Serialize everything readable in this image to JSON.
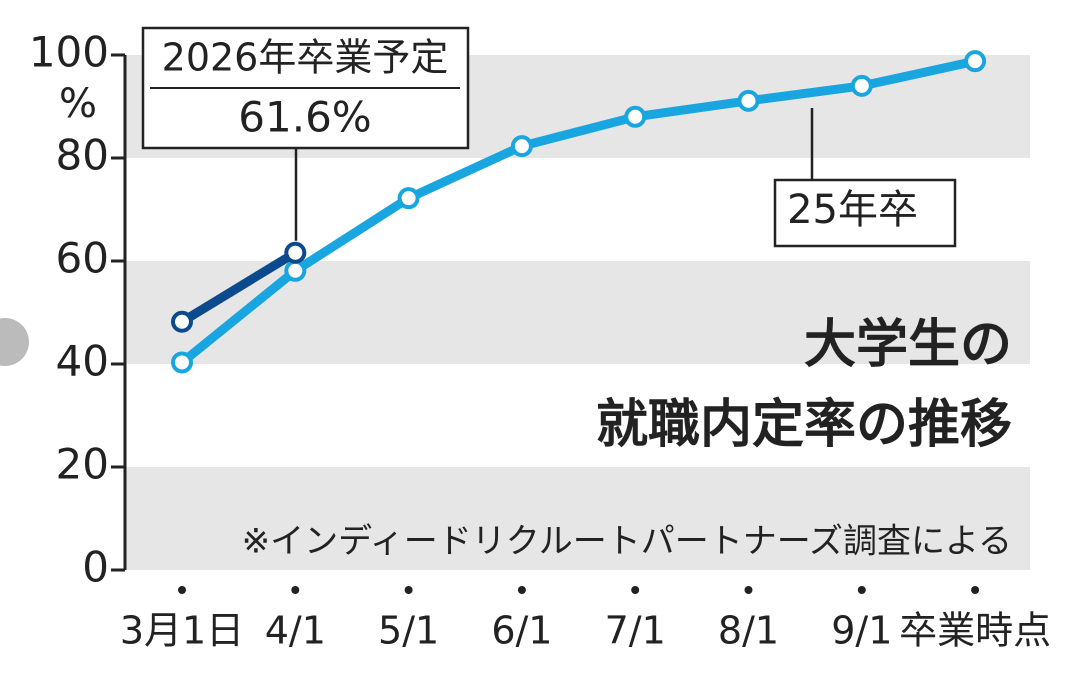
{
  "chart_data": {
    "type": "line",
    "title": [
      "大学生の",
      "就職内定率の推移"
    ],
    "note": "※インディードリクルートパートナーズ調査による",
    "y_unit": "%",
    "categories": [
      "3月1日",
      "4/1",
      "5/1",
      "6/1",
      "7/1",
      "8/1",
      "9/1",
      "卒業時点"
    ],
    "series": [
      {
        "name": "25年卒",
        "color": "#19a6e0",
        "values": [
          40.3,
          58.1,
          72.2,
          82.3,
          88.0,
          91.1,
          94.0,
          98.8
        ]
      },
      {
        "name": "2026年卒業予定",
        "color": "#0b4a8c",
        "values": [
          48.2,
          61.6,
          null,
          null,
          null,
          null,
          null,
          null
        ],
        "value_labels": [
          null,
          "61.6%",
          null,
          null,
          null,
          null,
          null,
          null
        ]
      }
    ],
    "ylim": [
      0,
      100
    ],
    "yticks": [
      0,
      20,
      40,
      60,
      80,
      100
    ],
    "grid": "bands"
  }
}
